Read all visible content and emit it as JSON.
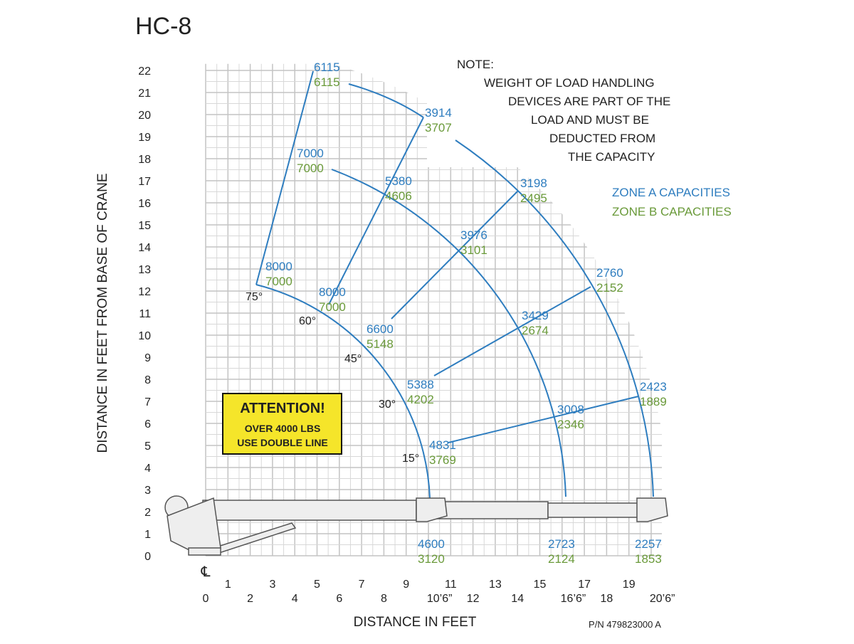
{
  "title": "HC-8",
  "y_axis_label": "DISTANCE IN FEET FROM BASE OF CRANE",
  "x_axis_label": "DISTANCE IN FEET",
  "part_number": "P/N 479823000 A",
  "centerline": "℄",
  "note": [
    "NOTE:",
    "WEIGHT OF LOAD HANDLING",
    "DEVICES ARE PART OF THE",
    "LOAD AND MUST BE",
    "DEDUCTED FROM",
    "THE CAPACITY"
  ],
  "legend": [
    "ZONE A CAPACITIES",
    "ZONE B CAPACITIES"
  ],
  "attention": [
    "ATTENTION!",
    "OVER 4000 LBS",
    "USE DOUBLE LINE"
  ],
  "angles": [
    "75°",
    "60°",
    "45°",
    "30°",
    "15°"
  ],
  "y_ticks": [
    "0",
    "1",
    "2",
    "3",
    "4",
    "5",
    "6",
    "7",
    "8",
    "9",
    "10",
    "11",
    "12",
    "13",
    "14",
    "15",
    "16",
    "17",
    "18",
    "19",
    "20",
    "21",
    "22"
  ],
  "x_ticks_top": [
    "1",
    "3",
    "5",
    "7",
    "9",
    "11",
    "13",
    "15",
    "17",
    "19"
  ],
  "x_ticks_bottom": [
    "0",
    "2",
    "4",
    "6",
    "8",
    "10’6”",
    "12",
    "14",
    "16’6”",
    "18",
    "20’6”"
  ],
  "capacities": [
    [
      "6115",
      "6115"
    ],
    [
      "3914",
      "3707"
    ],
    [
      "7000",
      "7000"
    ],
    [
      "5380",
      "4606"
    ],
    [
      "3198",
      "2495"
    ],
    [
      "3976",
      "3101"
    ],
    [
      "2760",
      "2152"
    ],
    [
      "8000",
      "7000"
    ],
    [
      "8000",
      "7000"
    ],
    [
      "3429",
      "2674"
    ],
    [
      "6600",
      "5148"
    ],
    [
      "5388",
      "4202"
    ],
    [
      "2423",
      "1889"
    ],
    [
      "3008",
      "2346"
    ],
    [
      "4831",
      "3769"
    ],
    [
      "4600",
      "3120"
    ],
    [
      "2723",
      "2124"
    ],
    [
      "2257",
      "1853"
    ]
  ]
}
